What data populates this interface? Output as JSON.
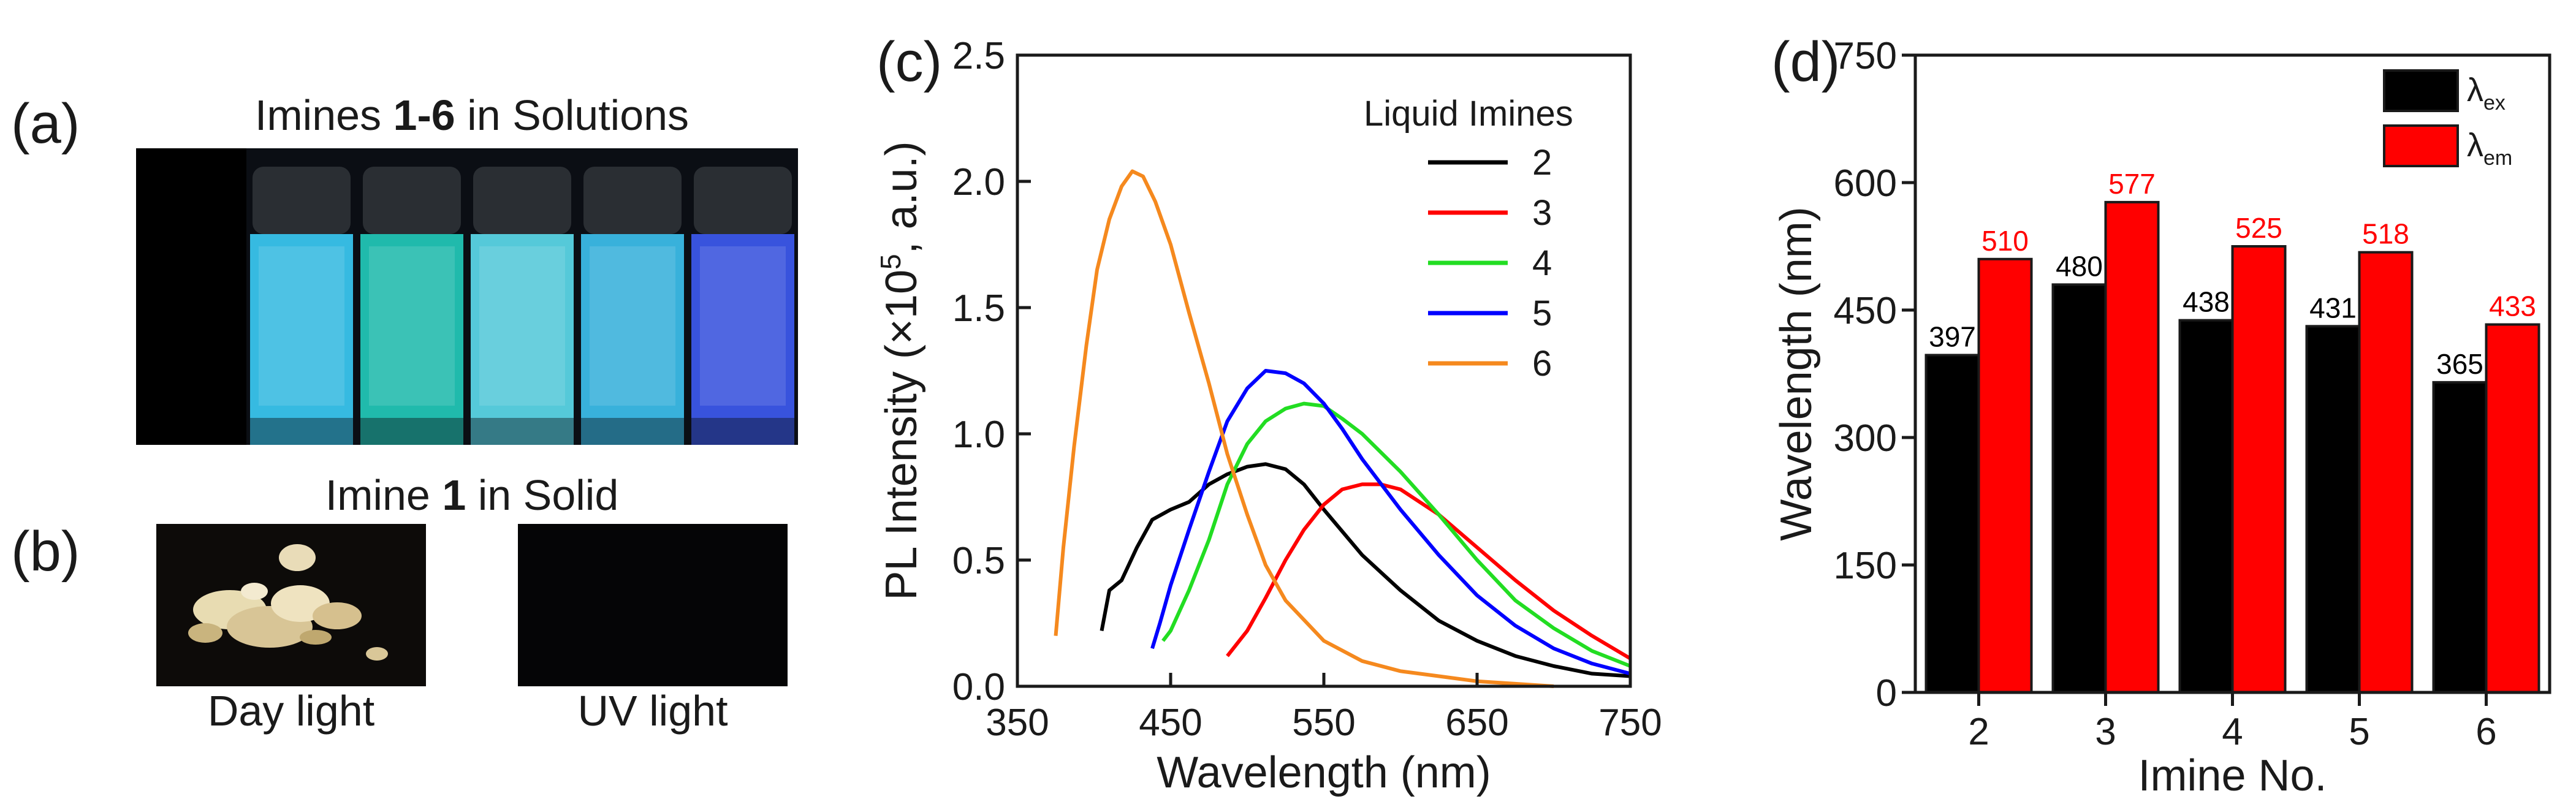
{
  "panel_a": {
    "label": "(a)",
    "title_pre": "Imines ",
    "title_bold": "1-6",
    "title_post": " in Solutions",
    "vials": [
      {
        "color": "#000000"
      },
      {
        "color": "#39c4ec"
      },
      {
        "color": "#22c4b4"
      },
      {
        "color": "#5ad4e4"
      },
      {
        "color": "#3bbae6"
      },
      {
        "color": "#3b57e8"
      }
    ]
  },
  "panel_b": {
    "label": "(b)",
    "title_pre": "Imine ",
    "title_bold": "1",
    "title_post": " in Solid",
    "captions": [
      "Day light",
      "UV light"
    ]
  },
  "panel_c": {
    "label": "(c)",
    "legend_title": "Liquid Imines"
  },
  "panel_d": {
    "label": "(d)"
  },
  "chart_data": [
    {
      "type": "line",
      "panel": "(c)",
      "xlabel": "Wavelength (nm)",
      "ylabel": "PL Intensity (×10^5, a.u.)",
      "ylabel_pre": "PL Intensity (×10",
      "ylabel_sup": "5",
      "ylabel_post": ", a.u.)",
      "xlim": [
        350,
        750
      ],
      "ylim": [
        0,
        2.5
      ],
      "xticks": [
        350,
        450,
        550,
        650,
        750
      ],
      "yticks": [
        "0.0",
        "0.5",
        "1.0",
        "1.5",
        "2.0",
        "2.5"
      ],
      "legend_title": "Liquid Imines",
      "series": [
        {
          "name": "2",
          "color": "#000000",
          "x": [
            405,
            410,
            418,
            428,
            438,
            450,
            462,
            475,
            487,
            500,
            512,
            525,
            537,
            550,
            575,
            600,
            625,
            650,
            675,
            700,
            725,
            750
          ],
          "y": [
            0.22,
            0.38,
            0.42,
            0.55,
            0.66,
            0.7,
            0.73,
            0.8,
            0.84,
            0.87,
            0.88,
            0.86,
            0.8,
            0.7,
            0.52,
            0.38,
            0.26,
            0.18,
            0.12,
            0.08,
            0.05,
            0.04
          ]
        },
        {
          "name": "3",
          "color": "#ff0000",
          "x": [
            487,
            500,
            512,
            525,
            537,
            550,
            562,
            575,
            587,
            600,
            625,
            650,
            675,
            700,
            725,
            750
          ],
          "y": [
            0.12,
            0.22,
            0.35,
            0.5,
            0.62,
            0.72,
            0.78,
            0.8,
            0.8,
            0.78,
            0.68,
            0.55,
            0.42,
            0.3,
            0.2,
            0.11
          ]
        },
        {
          "name": "4",
          "color": "#22dd22",
          "x": [
            445,
            450,
            462,
            475,
            487,
            500,
            512,
            525,
            537,
            550,
            562,
            575,
            600,
            625,
            650,
            675,
            700,
            725,
            750
          ],
          "y": [
            0.18,
            0.22,
            0.38,
            0.58,
            0.8,
            0.96,
            1.05,
            1.1,
            1.12,
            1.11,
            1.06,
            1.0,
            0.85,
            0.68,
            0.5,
            0.34,
            0.23,
            0.14,
            0.08
          ]
        },
        {
          "name": "5",
          "color": "#0000ff",
          "x": [
            438,
            443,
            450,
            462,
            475,
            487,
            500,
            512,
            525,
            537,
            550,
            562,
            575,
            600,
            625,
            650,
            675,
            700,
            725,
            750
          ],
          "y": [
            0.15,
            0.25,
            0.4,
            0.62,
            0.85,
            1.05,
            1.18,
            1.25,
            1.24,
            1.2,
            1.12,
            1.02,
            0.9,
            0.7,
            0.52,
            0.36,
            0.24,
            0.15,
            0.09,
            0.05
          ]
        },
        {
          "name": "6",
          "color": "#f5891e",
          "x": [
            375,
            380,
            387,
            395,
            402,
            410,
            418,
            425,
            432,
            440,
            450,
            462,
            475,
            487,
            500,
            512,
            525,
            550,
            575,
            600,
            625,
            650,
            675,
            700
          ],
          "y": [
            0.2,
            0.55,
            0.95,
            1.35,
            1.65,
            1.85,
            1.98,
            2.04,
            2.02,
            1.92,
            1.75,
            1.48,
            1.2,
            0.92,
            0.68,
            0.48,
            0.34,
            0.18,
            0.1,
            0.06,
            0.04,
            0.02,
            0.01,
            0.0
          ]
        }
      ]
    },
    {
      "type": "bar",
      "panel": "(d)",
      "xlabel": "Imine No.",
      "ylabel": "Wavelength (nm)",
      "categories": [
        "2",
        "3",
        "4",
        "5",
        "6"
      ],
      "ylim": [
        0,
        750
      ],
      "yticks": [
        "0",
        "150",
        "300",
        "450",
        "600",
        "750"
      ],
      "series": [
        {
          "name": "λex",
          "label_main": "λ",
          "label_sub": "ex",
          "color": "#000000",
          "values": [
            397,
            480,
            438,
            431,
            365
          ],
          "label_color": "#000000"
        },
        {
          "name": "λem",
          "label_main": "λ",
          "label_sub": "em",
          "color": "#ff0000",
          "values": [
            510,
            577,
            525,
            518,
            433
          ],
          "label_color": "#ff0000"
        }
      ]
    }
  ]
}
